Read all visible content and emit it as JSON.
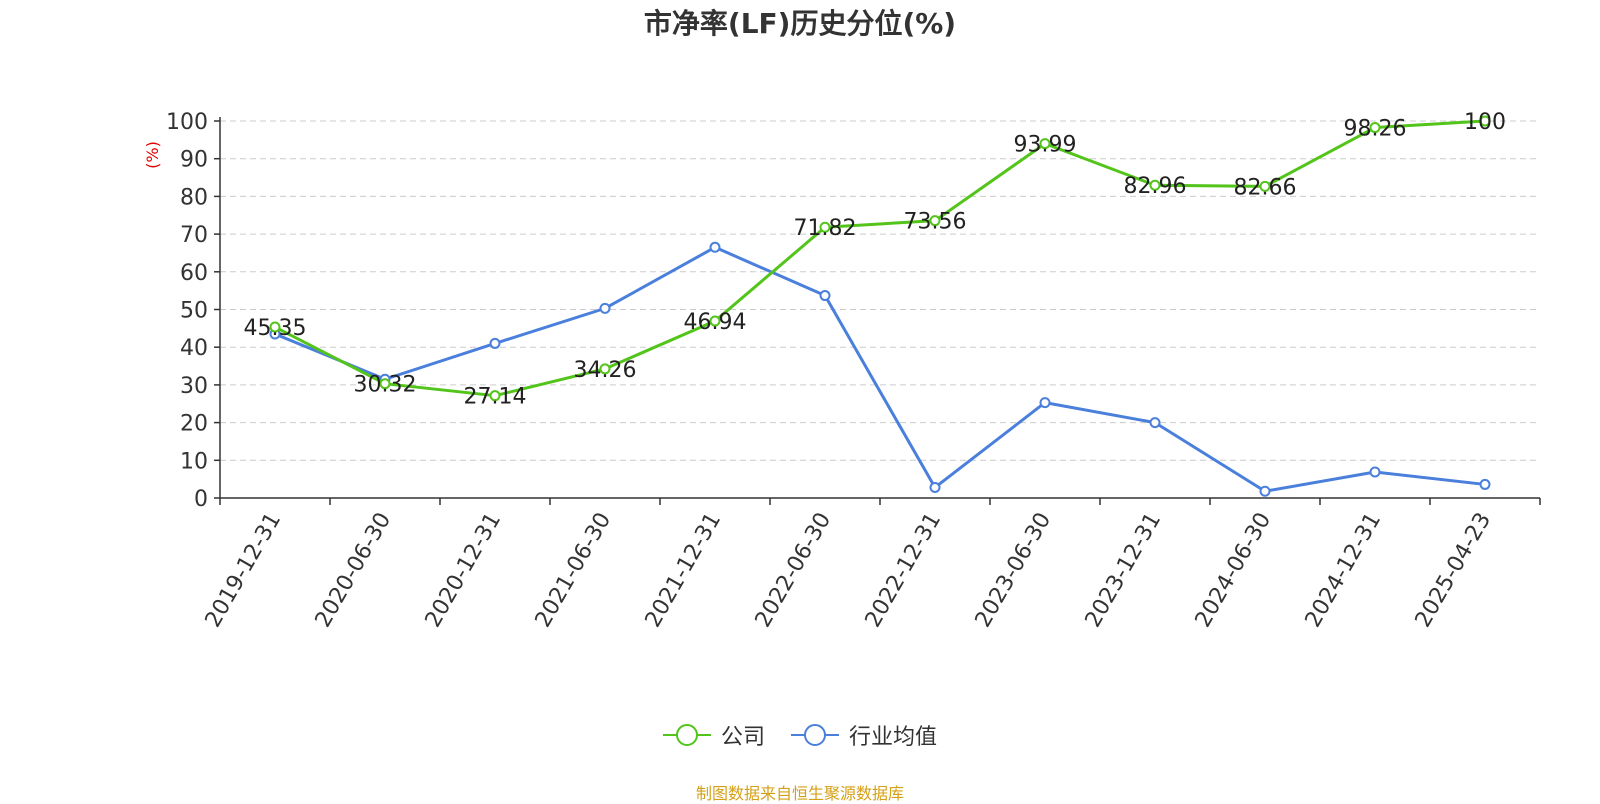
{
  "chart_data": {
    "type": "line",
    "title": "市净率(LF)历史分位(%)",
    "ylabel": "(%)",
    "xlabel": "",
    "categories": [
      "2019-12-31",
      "2020-06-30",
      "2020-12-31",
      "2021-06-30",
      "2021-12-31",
      "2022-06-30",
      "2022-12-31",
      "2023-06-30",
      "2023-12-31",
      "2024-06-30",
      "2024-12-31",
      "2025-04-23"
    ],
    "ylim": [
      0,
      100
    ],
    "yticks": [
      0,
      10,
      20,
      30,
      40,
      50,
      60,
      70,
      80,
      90,
      100
    ],
    "grid": "horizontal-dashed",
    "legend_position": "bottom-center",
    "series": [
      {
        "name": "公司",
        "color": "#52c41a",
        "show_labels": true,
        "values": [
          45.35,
          30.32,
          27.14,
          34.26,
          46.94,
          71.82,
          73.56,
          93.99,
          82.96,
          82.66,
          98.26,
          100
        ]
      },
      {
        "name": "行业均值",
        "color": "#4a7fdc",
        "show_labels": false,
        "values": [
          43.5,
          31.5,
          41.0,
          50.3,
          66.5,
          53.7,
          2.8,
          25.3,
          20.0,
          1.8,
          6.9,
          3.6
        ]
      }
    ]
  },
  "legend": {
    "company": "公司",
    "industry": "行业均值"
  },
  "source": "制图数据来自恒生聚源数据库",
  "colors": {
    "axis_label_red": "#e00000",
    "source_text": "#d4a017"
  }
}
